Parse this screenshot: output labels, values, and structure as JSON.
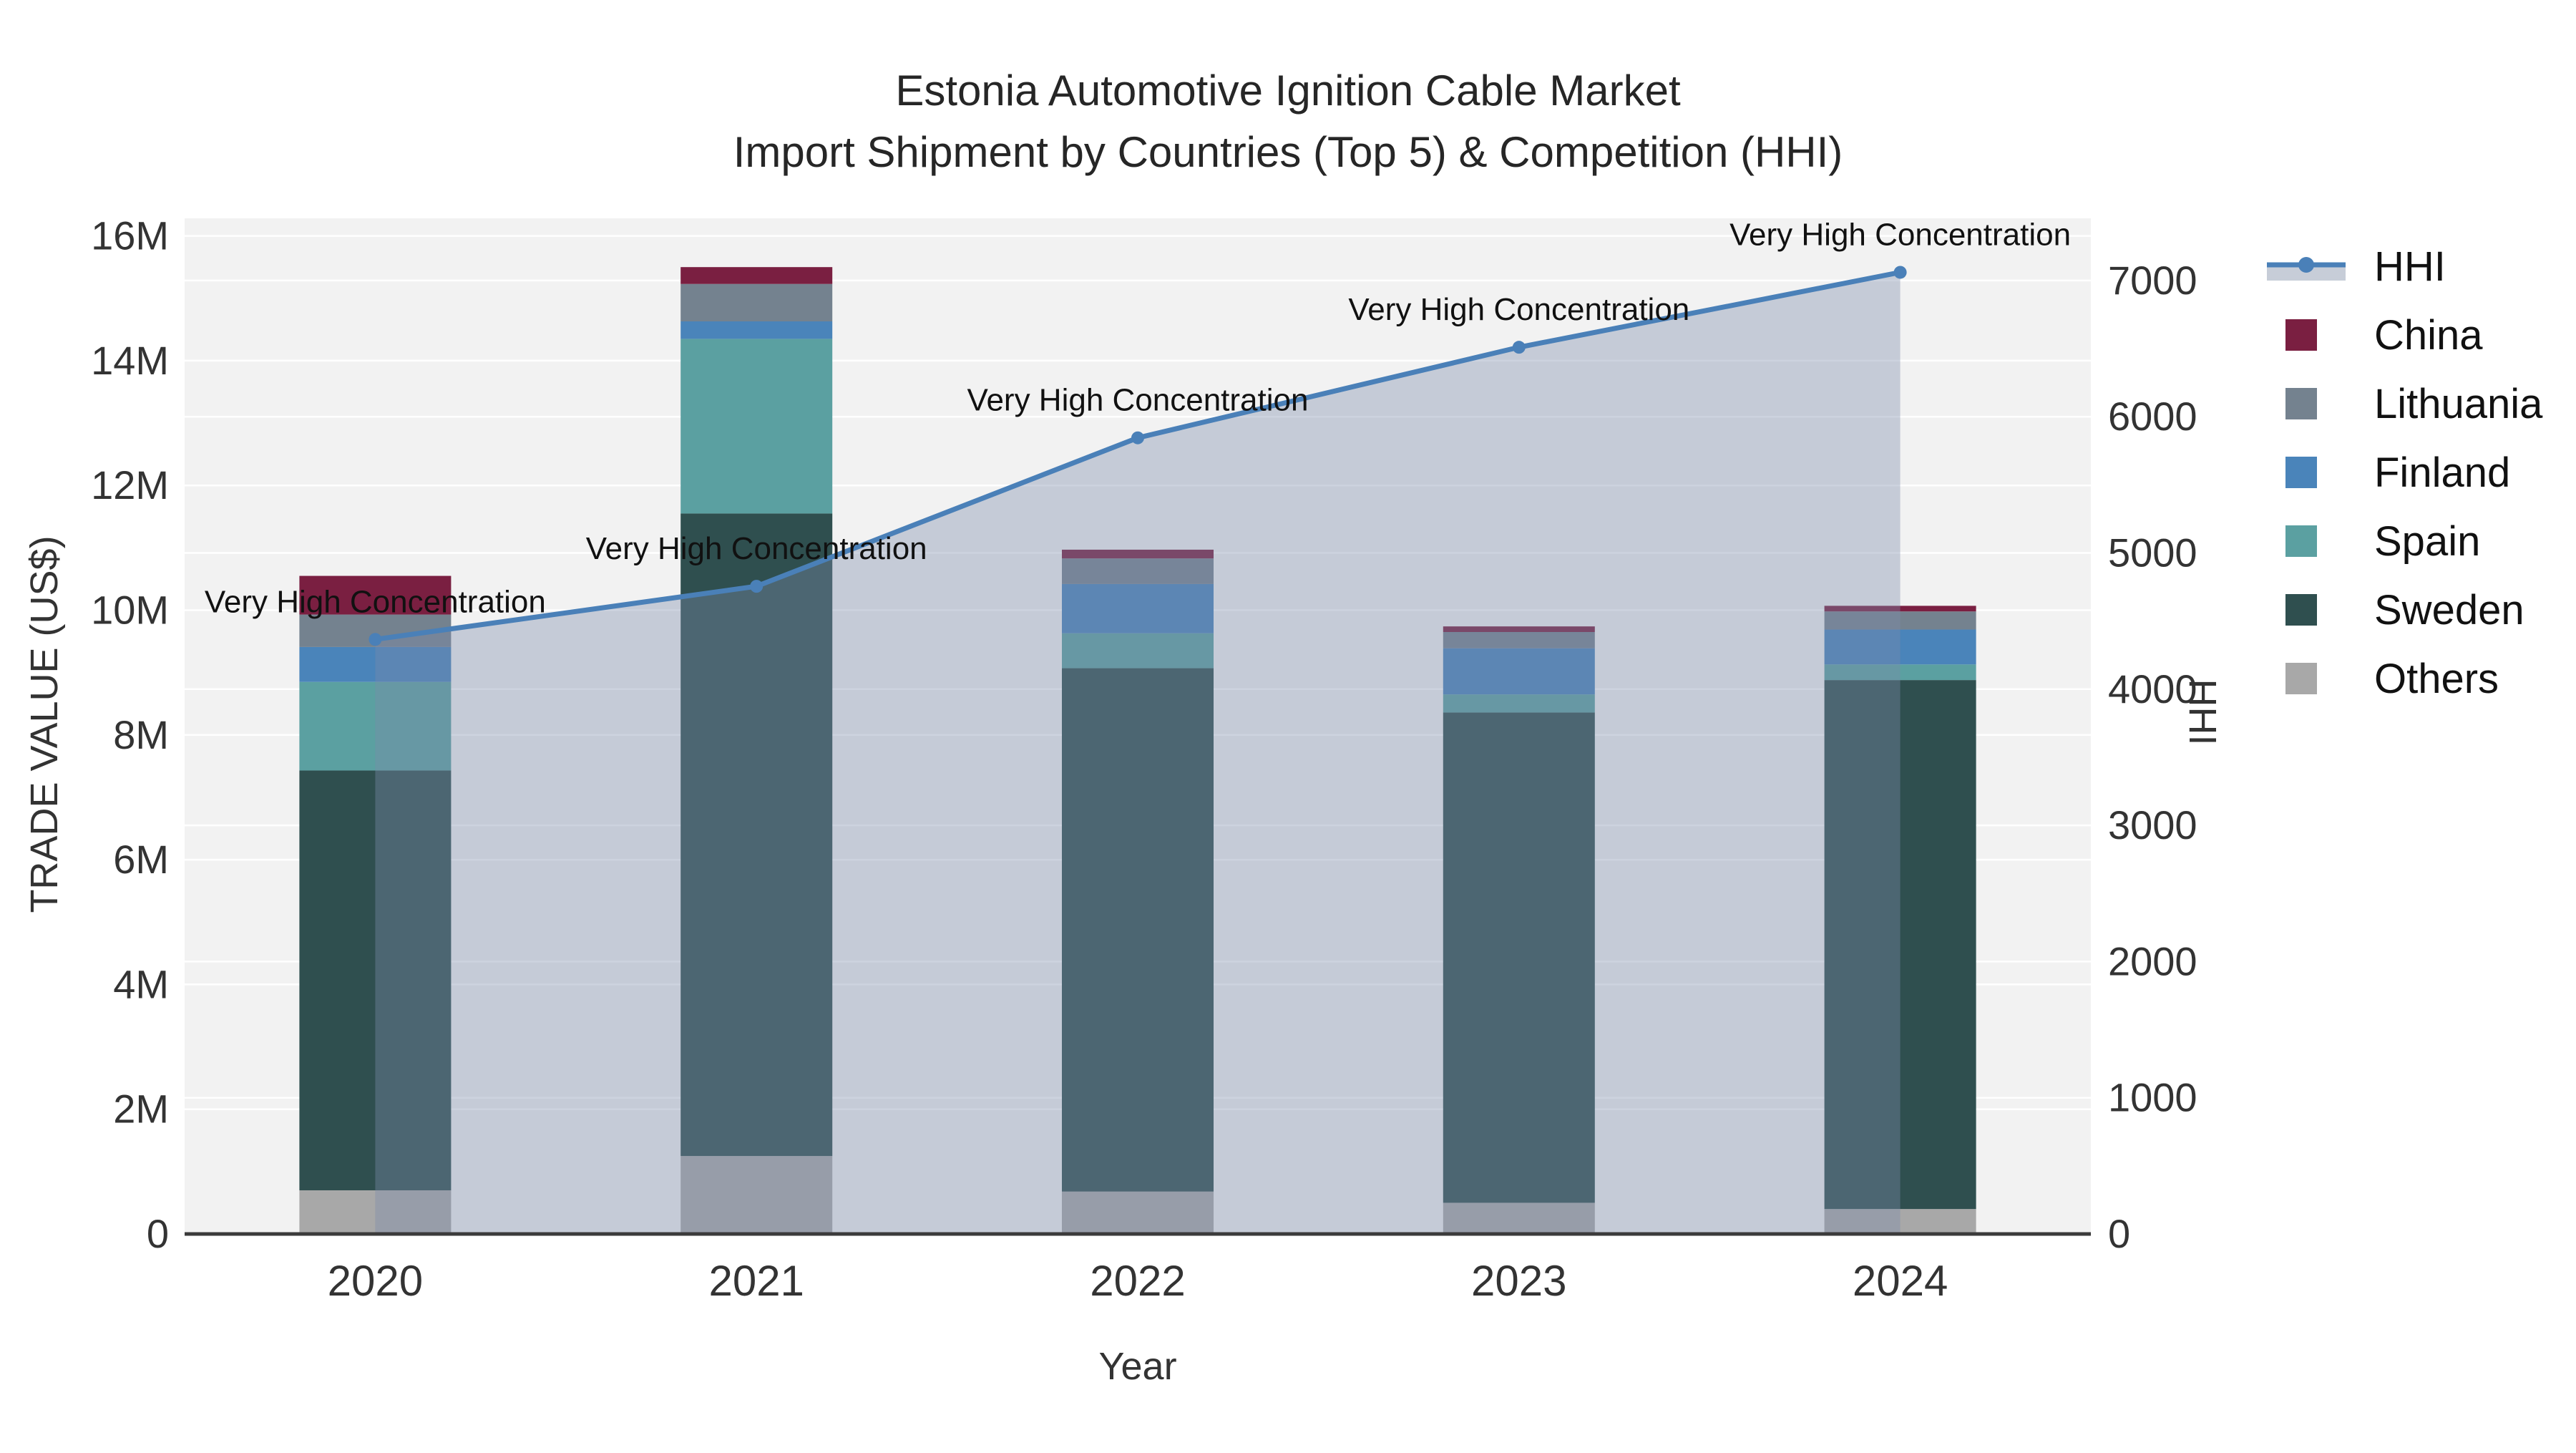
{
  "title": {
    "line1": "Estonia Automotive Ignition Cable Market",
    "line2": "Import Shipment by Countries (Top 5) & Competition (HHI)"
  },
  "axes": {
    "x": {
      "title": "Year",
      "categories": [
        "2020",
        "2021",
        "2022",
        "2023",
        "2024"
      ]
    },
    "y_left": {
      "title": "TRADE VALUE (US$)",
      "tick_labels": [
        "0",
        "2M",
        "4M",
        "6M",
        "8M",
        "10M",
        "12M",
        "14M",
        "16M"
      ],
      "tick_values": [
        0,
        2,
        4,
        6,
        8,
        10,
        12,
        14,
        16
      ],
      "unit": "million US$"
    },
    "y_right": {
      "title": "HHI",
      "tick_labels": [
        "0",
        "1000",
        "2000",
        "3000",
        "4000",
        "5000",
        "6000",
        "7000"
      ],
      "tick_values": [
        0,
        1000,
        2000,
        3000,
        4000,
        5000,
        6000,
        7000
      ]
    }
  },
  "chart_data": {
    "type": "combo",
    "bar_type": "stacked",
    "unit": "million US$",
    "categories": [
      "2020",
      "2021",
      "2022",
      "2023",
      "2024"
    ],
    "series": [
      {
        "name": "Others",
        "color": "#a8a8a8",
        "values": [
          0.7,
          1.25,
          0.68,
          0.5,
          0.4
        ]
      },
      {
        "name": "Sweden",
        "color": "#2f4f4f",
        "values": [
          6.73,
          10.3,
          8.39,
          7.86,
          8.48
        ]
      },
      {
        "name": "Spain",
        "color": "#5ba0a1",
        "values": [
          1.42,
          2.8,
          0.56,
          0.29,
          0.25
        ]
      },
      {
        "name": "Finland",
        "color": "#4a84ba",
        "values": [
          0.56,
          0.28,
          0.79,
          0.74,
          0.56
        ]
      },
      {
        "name": "Lithuania",
        "color": "#74828f",
        "values": [
          0.52,
          0.6,
          0.41,
          0.26,
          0.29
        ]
      },
      {
        "name": "China",
        "color": "#7a1f41",
        "values": [
          0.62,
          0.27,
          0.14,
          0.09,
          0.09
        ]
      }
    ],
    "totals": [
      10.55,
      15.5,
      10.97,
      9.74,
      10.07
    ],
    "hhi_line": {
      "name": "HHI",
      "color": "#4a80b8",
      "area_fill": "rgba(124,139,170,0.38)",
      "values": [
        4365,
        4755,
        5845,
        6510,
        7060
      ]
    },
    "annotations": {
      "per_point": [
        "Very High Concentration",
        "Very High Concentration",
        "Very High Concentration",
        "Very High Concentration",
        "Very High Concentration"
      ]
    }
  },
  "legend": {
    "items": [
      {
        "label": "HHI",
        "type": "line",
        "color": "#4a80b8",
        "area_color": "#c7cdd8"
      },
      {
        "label": "China",
        "type": "square",
        "color": "#7a1f41"
      },
      {
        "label": "Lithuania",
        "type": "square",
        "color": "#74828f"
      },
      {
        "label": "Finland",
        "type": "square",
        "color": "#4a84ba"
      },
      {
        "label": "Spain",
        "type": "square",
        "color": "#5ba0a1"
      },
      {
        "label": "Sweden",
        "type": "square",
        "color": "#2f4f4f"
      },
      {
        "label": "Others",
        "type": "square",
        "color": "#a8a8a8"
      }
    ]
  },
  "colors": {
    "plot_bg": "#f2f2f2",
    "grid": "#ffffff",
    "axis_line": "#3b3b3b",
    "tick_text": "#333333"
  }
}
